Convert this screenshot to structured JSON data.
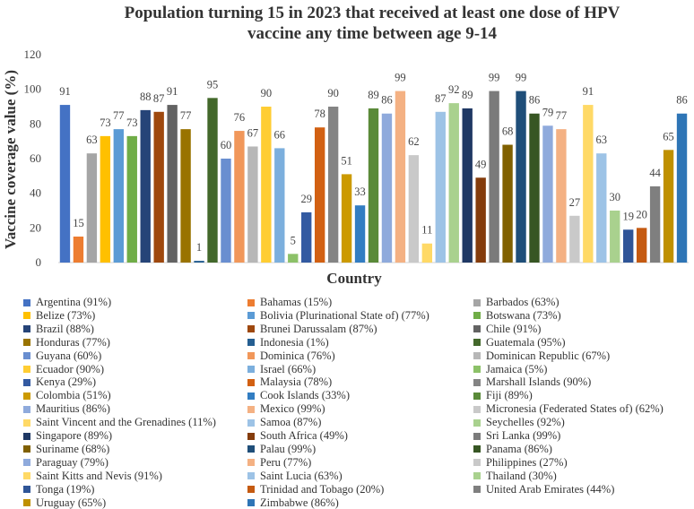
{
  "chart_data": {
    "type": "bar",
    "title": "Population turning 15 in 2023 that received at least one dose of HPV vaccine any time between age 9-14",
    "title_lines": [
      "Population turning 15 in 2023 that received at least one dose of HPV",
      "vaccine any time between age 9-14"
    ],
    "xlabel": "Country",
    "ylabel": "Vaccine coverage value (%)",
    "ylim": [
      0,
      120
    ],
    "yticks": [
      "0",
      "20",
      "40",
      "60",
      "80",
      "100",
      "120"
    ],
    "grid": false,
    "legend_position": "bottom",
    "categories": [
      "Argentina",
      "Bahamas",
      "Barbados",
      "Belize",
      "Bolivia (Plurinational State of)",
      "Botswana",
      "Brazil",
      "Brunei Darussalam",
      "Chile",
      "Honduras",
      "Indonesia",
      "Guatemala",
      "Guyana",
      "Dominica",
      "Dominican Republic",
      "Ecuador",
      "Israel",
      "Jamaica",
      "Kenya",
      "Malaysia",
      "Marshall Islands",
      "Colombia",
      "Cook Islands",
      "Fiji",
      "Mauritius",
      "Mexico",
      "Micronesia (Federated States of)",
      "Saint Vincent and the Grenadines",
      "Samoa",
      "Seychelles",
      "Singapore",
      "South Africa",
      "Sri Lanka",
      "Suriname",
      "Palau",
      "Panama",
      "Paraguay",
      "Peru",
      "Philippines",
      "Saint Kitts and Nevis",
      "Saint Lucia",
      "Thailand",
      "Tonga",
      "Trinidad and Tobago",
      "United Arab Emirates",
      "Uruguay",
      "Zimbabwe"
    ],
    "values": [
      91,
      15,
      63,
      73,
      77,
      73,
      88,
      87,
      91,
      77,
      1,
      95,
      60,
      76,
      67,
      90,
      66,
      5,
      29,
      78,
      90,
      51,
      33,
      89,
      86,
      99,
      62,
      11,
      87,
      92,
      89,
      49,
      99,
      68,
      99,
      86,
      79,
      77,
      27,
      91,
      63,
      30,
      19,
      20,
      44,
      65,
      86
    ],
    "value_labels": [
      "91",
      "15",
      "63",
      "73",
      "77",
      "73",
      "88",
      "87",
      "91",
      "77",
      "1",
      "95",
      "60",
      "76",
      "67",
      "90",
      "66",
      "5",
      "29",
      "78",
      "90",
      "51",
      "33",
      "89",
      "86",
      "99",
      "62",
      "11",
      "87",
      "92",
      "89",
      "49",
      "99",
      "68",
      "99",
      "86",
      "79",
      "77",
      "27",
      "91",
      "63",
      "30",
      "19",
      "20",
      "44",
      "65",
      "86"
    ],
    "legend_labels": [
      "Argentina (91%)",
      "Bahamas (15%)",
      "Barbados (63%)",
      "Belize (73%)",
      "Bolivia (Plurinational State of) (77%)",
      "Botswana (73%)",
      "Brazil (88%)",
      "Brunei Darussalam (87%)",
      "Chile (91%)",
      "Honduras (77%)",
      "Indonesia (1%)",
      "Guatemala (95%)",
      "Guyana (60%)",
      "Dominica (76%)",
      "Dominican Republic (67%)",
      "Ecuador (90%)",
      "Israel (66%)",
      "Jamaica (5%)",
      "Kenya (29%)",
      "Malaysia (78%)",
      "Marshall Islands (90%)",
      "Colombia (51%)",
      "Cook Islands (33%)",
      "Fiji (89%)",
      "Mauritius (86%)",
      "Mexico (99%)",
      "Micronesia (Federated States of) (62%)",
      "Saint Vincent and the Grenadines (11%)",
      "Samoa (87%)",
      "Seychelles (92%)",
      "Singapore (89%)",
      "South Africa (49%)",
      "Sri Lanka (99%)",
      "Suriname (68%)",
      "Palau (99%)",
      "Panama (86%)",
      "Paraguay (79%)",
      "Peru (77%)",
      "Philippines (27%)",
      "Saint Kitts and Nevis (91%)",
      "Saint Lucia (63%)",
      "Thailand (30%)",
      "Tonga (19%)",
      "Trinidad and Tobago (20%)",
      "United Arab Emirates (44%)",
      "Uruguay (65%)",
      "Zimbabwe (86%)"
    ],
    "colors": [
      "#4472C4",
      "#ED7D31",
      "#A5A5A5",
      "#FFC000",
      "#5B9BD5",
      "#70AD47",
      "#264478",
      "#9E480E",
      "#636363",
      "#997300",
      "#255E91",
      "#43682B",
      "#698ED0",
      "#F1975A",
      "#B7B7B7",
      "#FFCD33",
      "#7CAFDD",
      "#8CC168",
      "#335AA1",
      "#D26012",
      "#848484",
      "#CC9A00",
      "#327DC2",
      "#5A8A39",
      "#8FAADC",
      "#F4B183",
      "#C9C9C9",
      "#FFD966",
      "#9DC3E6",
      "#A9D18E",
      "#1F3864",
      "#843C0C",
      "#7B7B7B",
      "#806000",
      "#1F4E79",
      "#375623",
      "#8FAADC",
      "#F4B183",
      "#C9C9C9",
      "#FFD966",
      "#9DC3E6",
      "#A9D18E",
      "#2F5597",
      "#C55A11",
      "#7F7F7F",
      "#BF9000",
      "#2E75B6"
    ]
  }
}
